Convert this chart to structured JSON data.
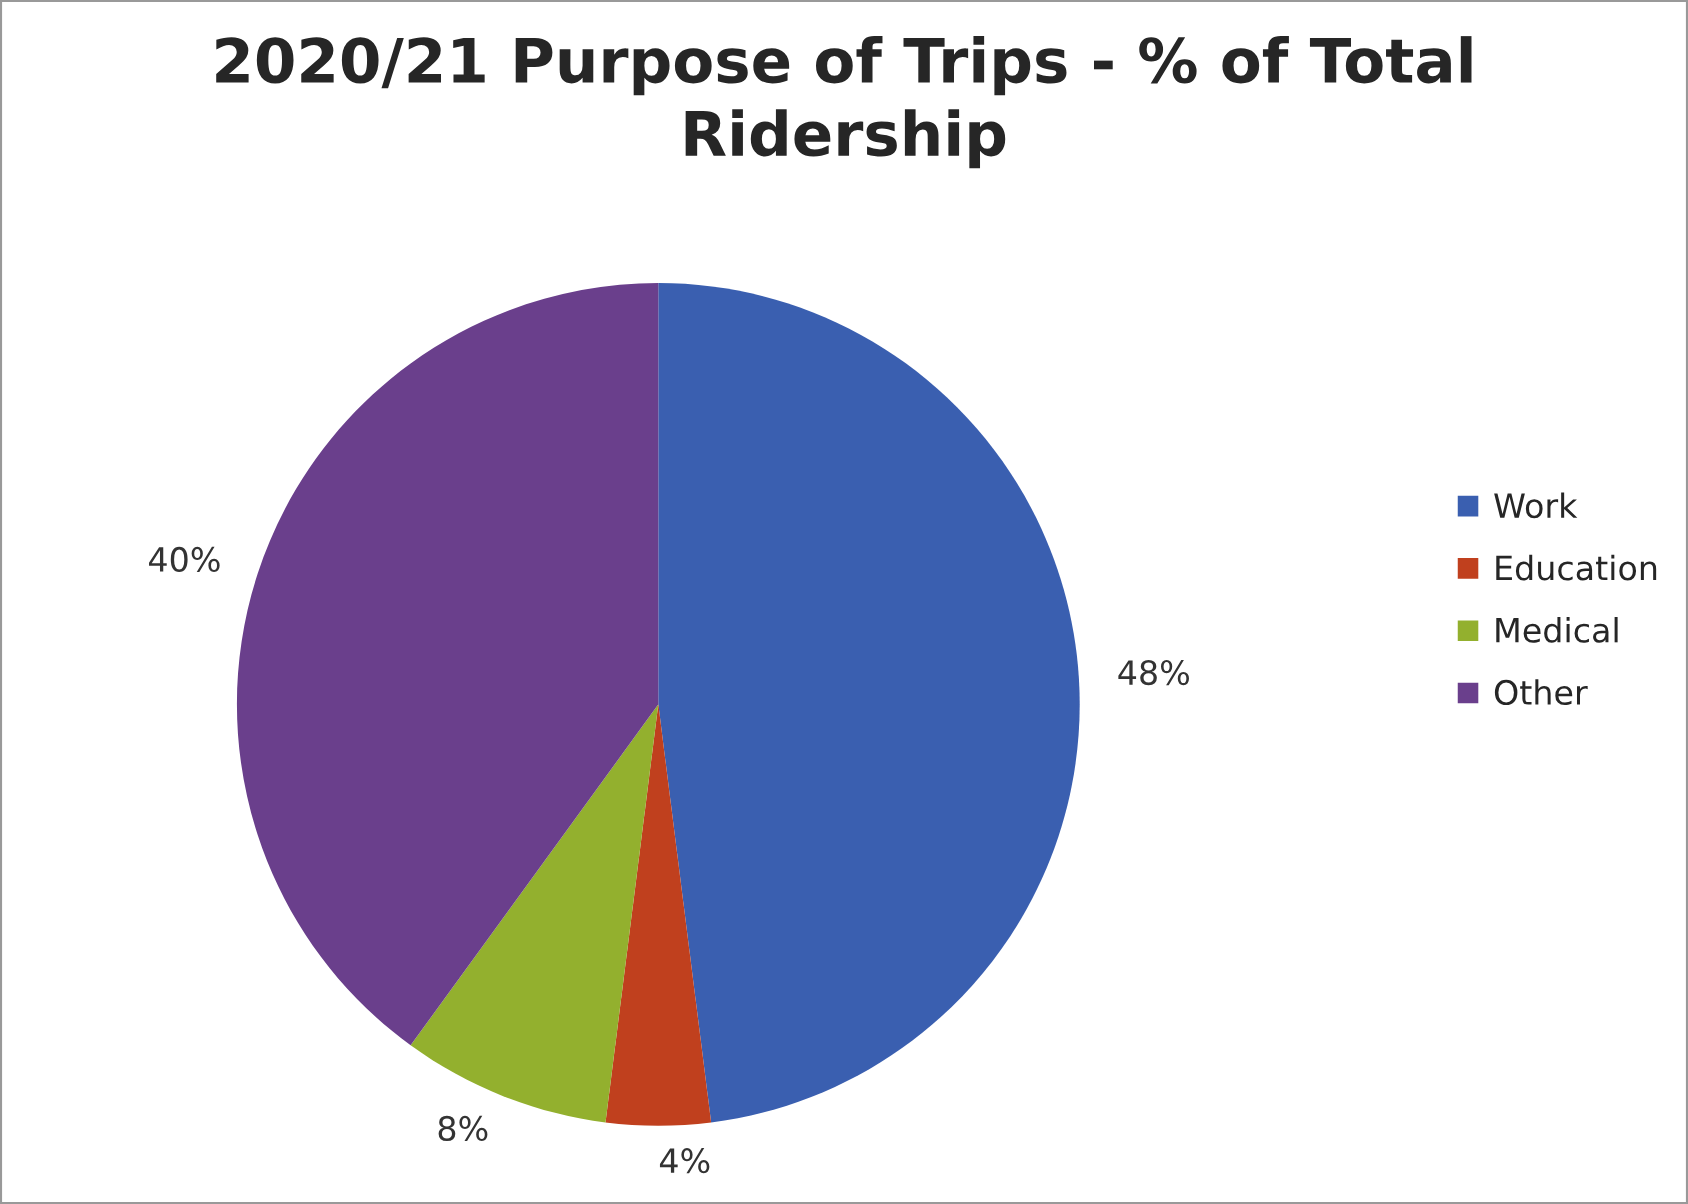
{
  "chart_data": {
    "type": "pie",
    "title": "2020/21 Purpose of Trips - % of Total\nRidership",
    "categories": [
      "Work",
      "Education",
      "Medical",
      "Other"
    ],
    "values": [
      48,
      4,
      8,
      40
    ],
    "colors": [
      "#3a5fb0",
      "#c0401e",
      "#93b02e",
      "#6a3f8c"
    ],
    "value_labels": [
      "48%",
      "4%",
      "8%",
      "40%"
    ],
    "legend": "right"
  }
}
